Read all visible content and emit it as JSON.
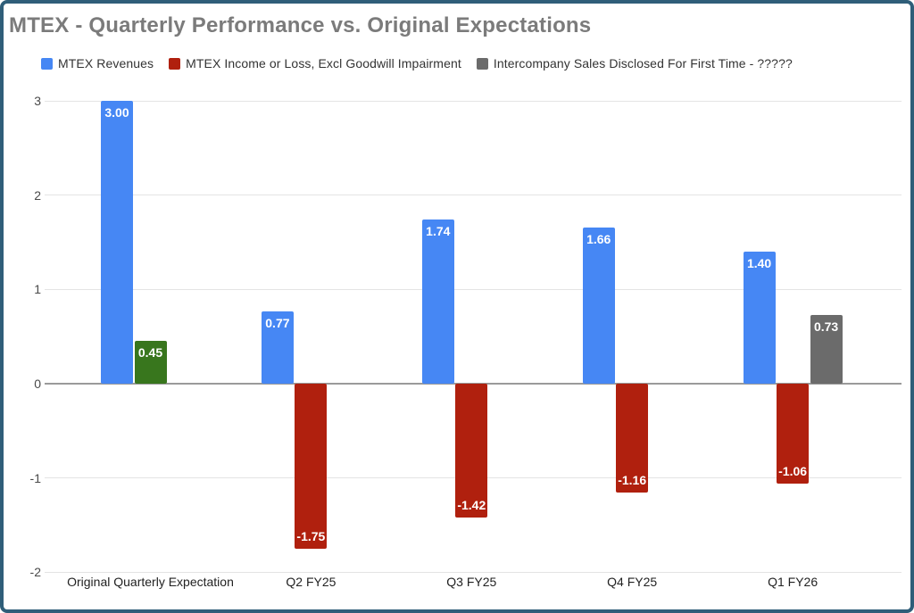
{
  "title": "MTEX - Quarterly Performance vs. Original Expectations",
  "legend": [
    {
      "label": "MTEX Revenues",
      "color": "#4687f4"
    },
    {
      "label": "MTEX Income or Loss, Excl Goodwill Impairment",
      "color": "#b0200e"
    },
    {
      "label": "Intercompany Sales Disclosed For First Time - ?????",
      "color": "#6b6b6b"
    }
  ],
  "chart_data": {
    "type": "bar",
    "title": "MTEX - Quarterly Performance vs. Original Expectations",
    "categories": [
      "Original Quarterly Expectation",
      "Q2 FY25",
      "Q3 FY25",
      "Q4 FY25",
      "Q1 FY26"
    ],
    "series": [
      {
        "name": "MTEX Revenues",
        "color": "#4687f4",
        "values": [
          3.0,
          0.77,
          1.74,
          1.66,
          1.4
        ]
      },
      {
        "name": "MTEX Income or Loss, Excl Goodwill Impairment",
        "color": "#b0200e",
        "point_colors": [
          "#38761d",
          null,
          null,
          null,
          null
        ],
        "values": [
          0.45,
          -1.75,
          -1.42,
          -1.16,
          -1.06
        ]
      },
      {
        "name": "Intercompany Sales Disclosed For First Time - ?????",
        "color": "#6b6b6b",
        "values": [
          null,
          null,
          null,
          null,
          0.73
        ]
      }
    ],
    "data_labels": [
      [
        "3.00",
        "0.77",
        "1.74",
        "1.66",
        "1.40"
      ],
      [
        "0.45",
        "-1.75",
        "-1.42",
        "-1.16",
        "-1.06"
      ],
      [
        null,
        null,
        null,
        null,
        "0.73"
      ]
    ],
    "xlabel": "",
    "ylabel": "",
    "ylim": [
      -2,
      3
    ],
    "yticks": [
      3,
      2,
      1,
      0,
      -1,
      -2
    ],
    "grid": true,
    "legend_position": "top"
  },
  "colors": {
    "frame_border": "#2f5e79",
    "title_text": "#7b7b7b",
    "legend_text": "#333333",
    "gridline": "#e4e4e4",
    "zero_line": "#9a9a9a",
    "axis_text": "#494949",
    "category_text": "#222222",
    "value_label_text": "#ffffff"
  }
}
